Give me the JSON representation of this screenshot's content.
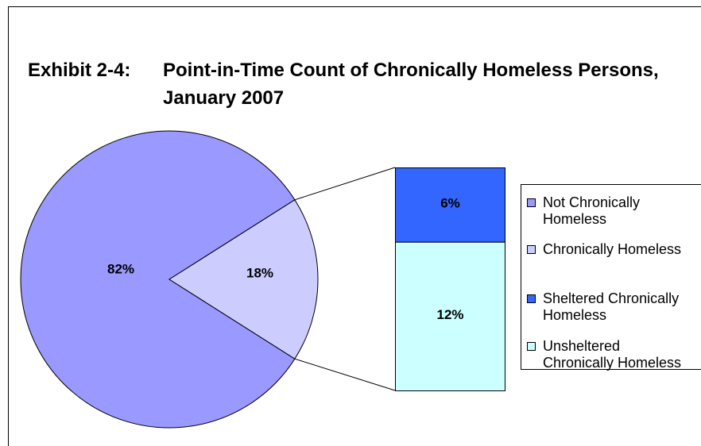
{
  "chart_data": {
    "type": "pie_of_bar",
    "title_label": "Exhibit 2-4:",
    "title": "Point-in-Time Count of Chronically Homeless Persons, January 2007",
    "categories": [
      "Not Chronically Homeless",
      "Chronically Homeless"
    ],
    "values": [
      82,
      18
    ],
    "value_labels": [
      "82%",
      "18%"
    ],
    "colors": [
      "#9999ff",
      "#ccccff"
    ],
    "bar": {
      "categories": [
        "Sheltered Chronically Homeless",
        "Unsheltered Chronically Homeless"
      ],
      "values": [
        6,
        12
      ],
      "value_labels": [
        "6%",
        "12%"
      ],
      "colors": [
        "#3366ff",
        "#ccffff"
      ]
    },
    "legend": "right"
  }
}
